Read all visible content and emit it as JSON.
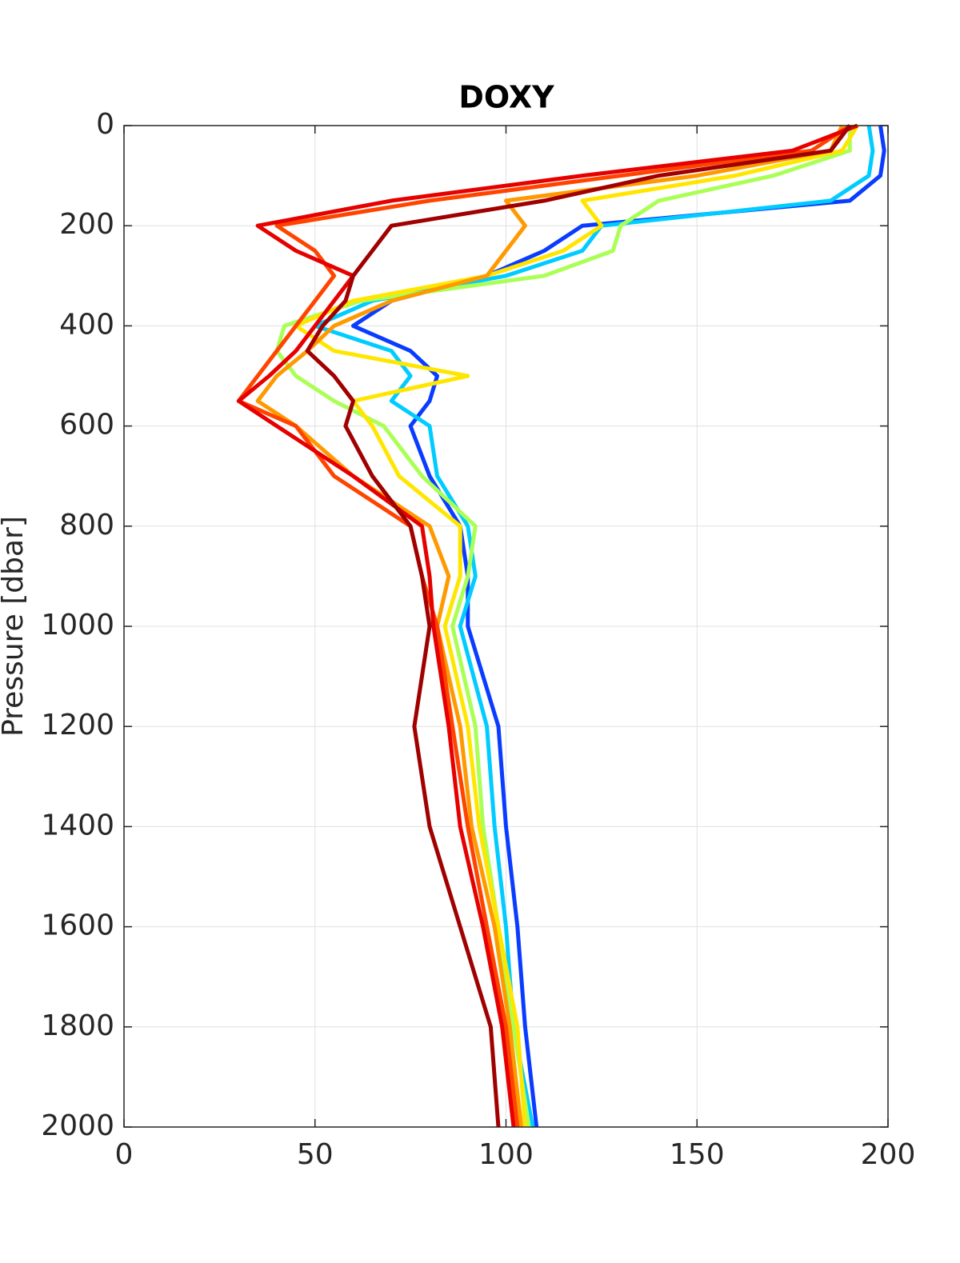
{
  "chart_data": {
    "type": "line",
    "title": "DOXY",
    "ylabel": "Pressure [dbar]",
    "y": [
      0,
      50,
      100,
      150,
      200,
      250,
      300,
      350,
      400,
      450,
      500,
      550,
      600,
      700,
      800,
      900,
      1000,
      1200,
      1400,
      1600,
      1800,
      2000
    ],
    "y_reversed": true,
    "grid": true,
    "xlim": [
      0,
      200
    ],
    "xticks": [
      0,
      50,
      100,
      150,
      200
    ],
    "ylim": [
      0,
      2000
    ],
    "yticks": [
      0,
      200,
      400,
      600,
      800,
      1000,
      1200,
      1400,
      1600,
      1800,
      2000
    ],
    "series": [
      {
        "color": "#0a3cff",
        "values": [
          198,
          199,
          198,
          190,
          120,
          110,
          95,
          70,
          60,
          75,
          82,
          80,
          75,
          80,
          88,
          90,
          90,
          98,
          100,
          103,
          105,
          108
        ]
      },
      {
        "color": "#00ccff",
        "values": [
          195,
          196,
          195,
          185,
          125,
          120,
          100,
          65,
          50,
          70,
          75,
          70,
          80,
          82,
          90,
          92,
          88,
          95,
          97,
          100,
          102,
          107
        ]
      },
      {
        "color": "#aaff55",
        "values": [
          190,
          190,
          170,
          140,
          130,
          128,
          110,
          62,
          42,
          40,
          45,
          55,
          68,
          78,
          92,
          90,
          86,
          92,
          94,
          98,
          102,
          106
        ]
      },
      {
        "color": "#ffe600",
        "values": [
          192,
          188,
          160,
          120,
          125,
          115,
          95,
          60,
          45,
          55,
          90,
          60,
          65,
          72,
          88,
          88,
          84,
          90,
          93,
          98,
          103,
          105
        ]
      },
      {
        "color": "#ff9900",
        "values": [
          188,
          185,
          150,
          100,
          105,
          100,
          95,
          70,
          55,
          48,
          40,
          35,
          45,
          60,
          80,
          85,
          82,
          88,
          91,
          97,
          101,
          104
        ]
      },
      {
        "color": "#ff4400",
        "values": [
          190,
          180,
          130,
          80,
          40,
          50,
          55,
          50,
          45,
          40,
          35,
          30,
          45,
          55,
          75,
          78,
          82,
          86,
          90,
          95,
          100,
          103
        ]
      },
      {
        "color": "#e60000",
        "values": [
          192,
          175,
          120,
          70,
          35,
          45,
          60,
          55,
          50,
          45,
          38,
          30,
          40,
          60,
          78,
          80,
          81,
          85,
          88,
          94,
          99,
          102
        ]
      },
      {
        "color": "#a00000",
        "values": [
          190,
          185,
          140,
          110,
          70,
          65,
          60,
          58,
          52,
          48,
          55,
          60,
          58,
          65,
          75,
          78,
          80,
          76,
          80,
          88,
          96,
          98
        ]
      }
    ]
  }
}
